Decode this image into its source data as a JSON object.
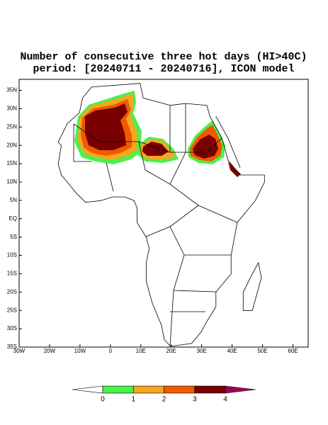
{
  "map": {
    "title": "Number of consecutive three hot days (HI>40C)",
    "subtitle": "period: [20240711 - 20240716], ICON model",
    "xlim": [
      -30,
      65
    ],
    "ylim": [
      -35,
      38
    ],
    "xticks": [
      {
        "value": -30,
        "label": "30W"
      },
      {
        "value": -20,
        "label": "20W"
      },
      {
        "value": -10,
        "label": "10W"
      },
      0,
      {
        "value": 10,
        "label": "10E"
      },
      {
        "value": 20,
        "label": "20E"
      },
      {
        "value": 30,
        "label": "30E"
      },
      {
        "value": 40,
        "label": "40E"
      },
      {
        "value": 50,
        "label": "50E"
      },
      {
        "value": 60,
        "label": "60E"
      }
    ],
    "yticks": [
      {
        "value": -35,
        "label": "35S"
      },
      {
        "value": -30,
        "label": "30S"
      },
      {
        "value": -25,
        "label": "25S"
      },
      {
        "value": -20,
        "label": "20S"
      },
      {
        "value": -15,
        "label": "15S"
      },
      {
        "value": -10,
        "label": "10S"
      },
      {
        "value": -5,
        "label": "5S"
      },
      {
        "value": 0,
        "label": "EQ"
      },
      {
        "value": 5,
        "label": "5N"
      },
      {
        "value": 10,
        "label": "10N"
      },
      {
        "value": 15,
        "label": "15N"
      },
      {
        "value": 20,
        "label": "20N"
      },
      {
        "value": 25,
        "label": "25N"
      },
      {
        "value": 30,
        "label": "30N"
      },
      {
        "value": 35,
        "label": "35N"
      }
    ],
    "colorbar": {
      "levels": [
        0,
        1,
        2,
        3,
        4
      ],
      "colors": [
        "#ffffff",
        "#4cf04c",
        "#f5a623",
        "#f05a00",
        "#780000",
        "#a0005a"
      ]
    }
  }
}
